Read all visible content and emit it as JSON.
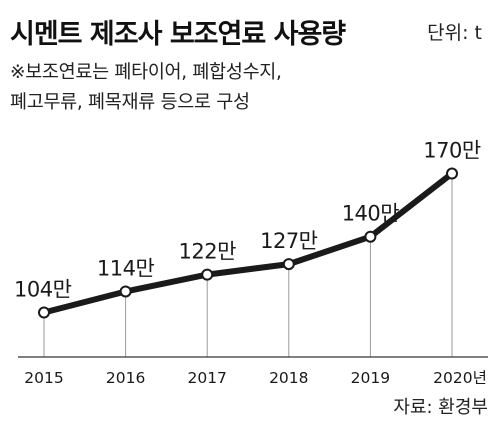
{
  "header": {
    "title": "시멘트 제조사 보조연료 사용량",
    "unit": "단위: t"
  },
  "note": {
    "line1": "※보조연료는 폐타이어, 폐합성수지,",
    "line2": "폐고무류, 폐목재류 등으로 구성"
  },
  "source": "자료:  환경부",
  "chart_data": {
    "type": "line",
    "title": "시멘트 제조사 보조연료 사용량",
    "categories": [
      "2015",
      "2016",
      "2017",
      "2018",
      "2019",
      "2020년"
    ],
    "values": [
      104,
      114,
      122,
      127,
      140,
      170
    ],
    "data_labels": [
      "104만",
      "114만",
      "122만",
      "127만",
      "140만",
      "170만"
    ],
    "unit_suffix": "만",
    "ylim": [
      90,
      175
    ],
    "grid": false,
    "line_color": "#1a1a1a",
    "marker_fill": "#ffffff",
    "drop_line_color": "#9a9a9a"
  }
}
